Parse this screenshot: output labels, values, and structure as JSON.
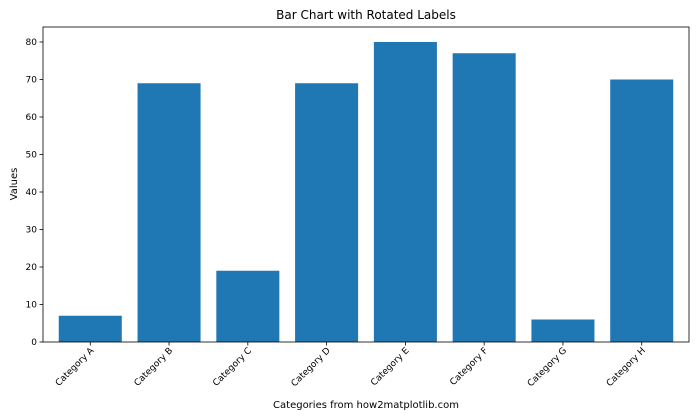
{
  "chart_data": {
    "type": "bar",
    "title": "Bar Chart with Rotated Labels",
    "xlabel": "Categories from how2matplotlib.com",
    "ylabel": "Values",
    "categories": [
      "Category A",
      "Category B",
      "Category C",
      "Category D",
      "Category E",
      "Category F",
      "Category G",
      "Category H"
    ],
    "values": [
      7,
      69,
      19,
      69,
      80,
      77,
      6,
      70
    ],
    "ylim": [
      0,
      84
    ],
    "yticks": [
      0,
      10,
      20,
      30,
      40,
      50,
      60,
      70,
      80
    ],
    "xtick_rotation": 45,
    "bar_color": "#1f77b4",
    "grid": false,
    "legend": false
  }
}
